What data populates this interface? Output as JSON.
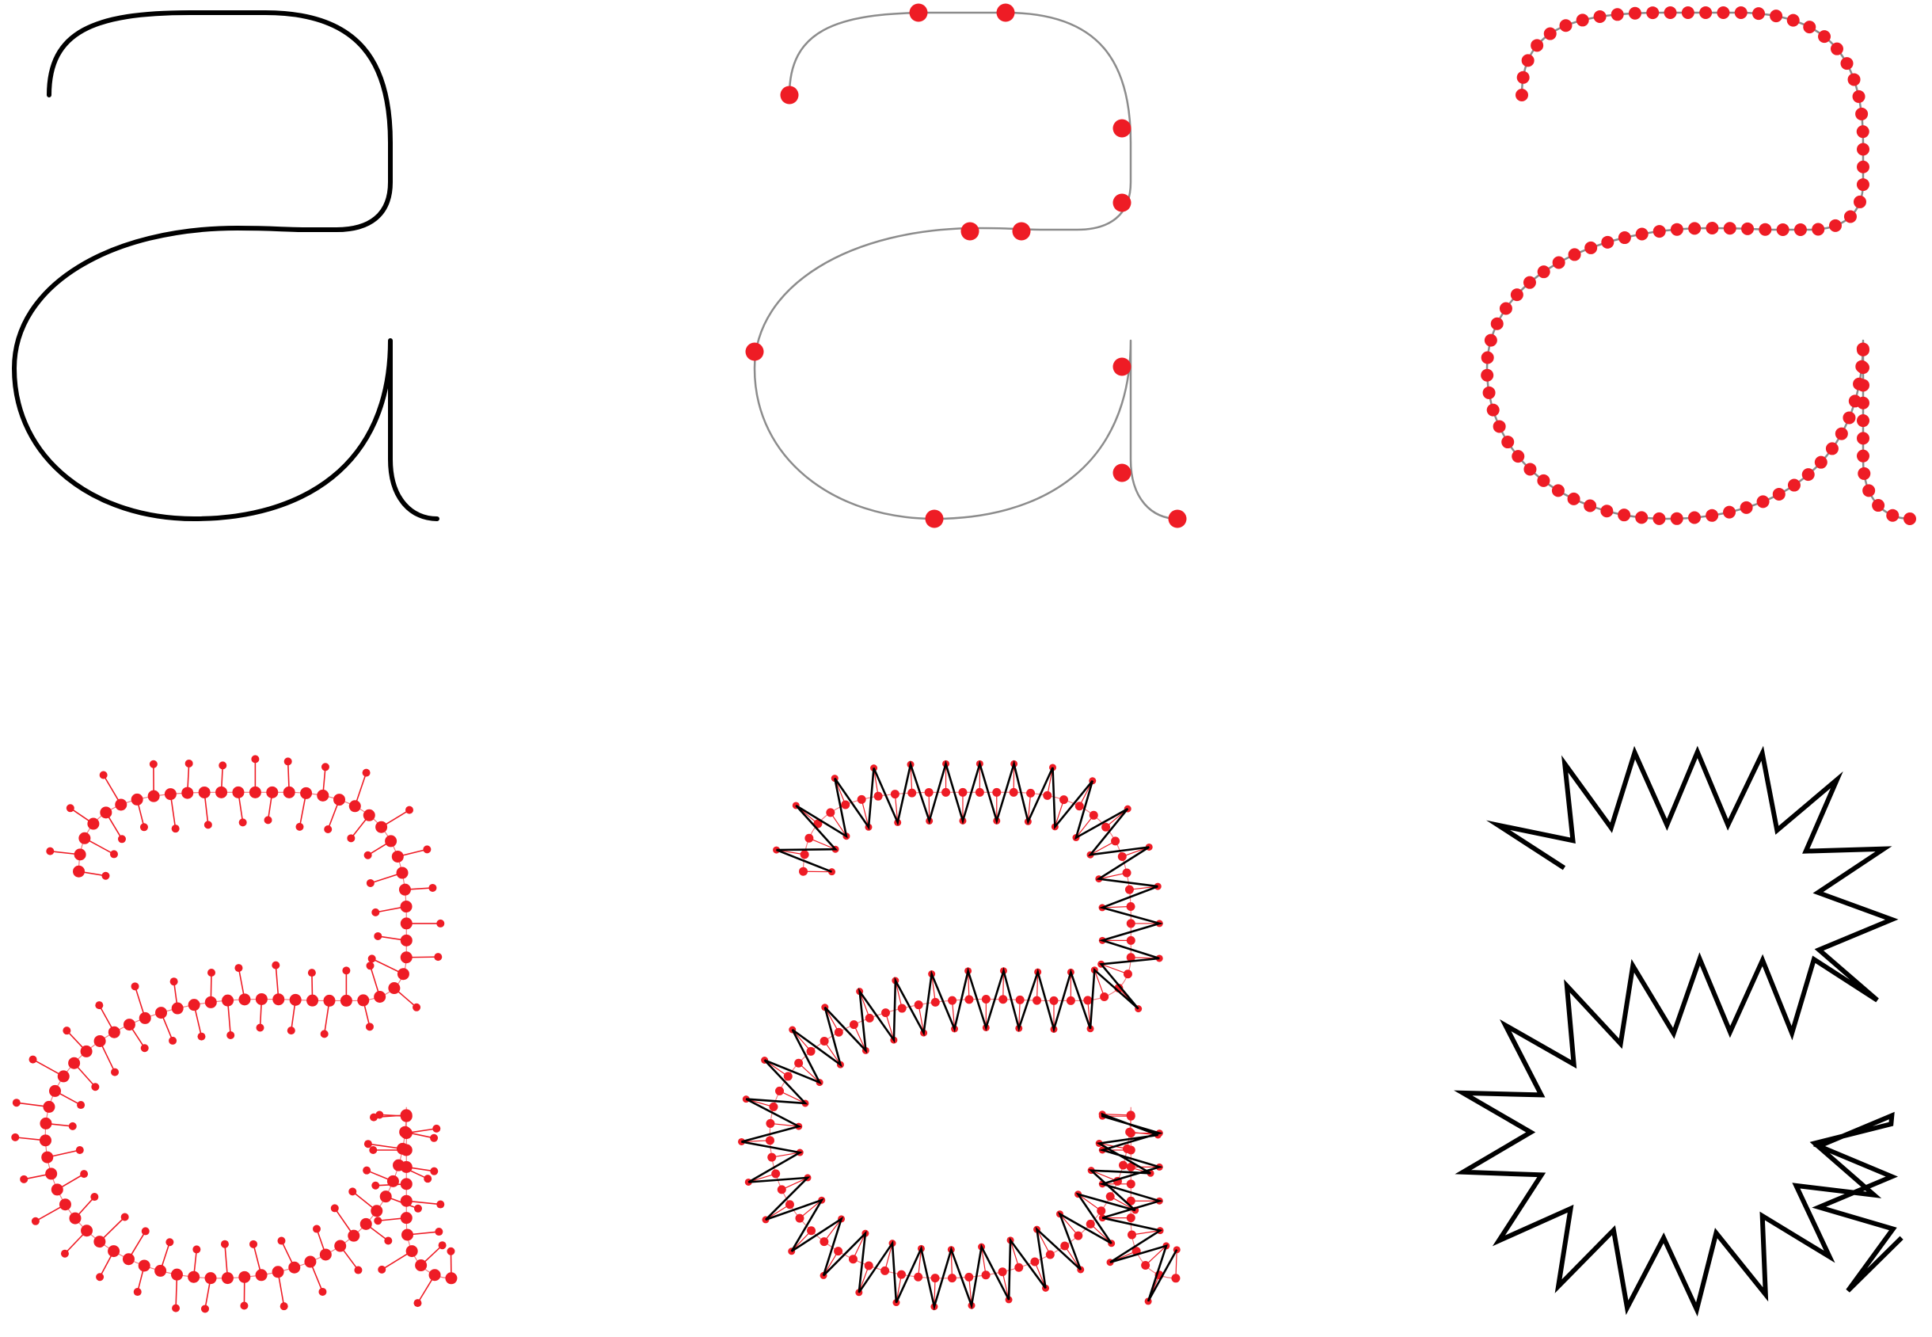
{
  "colors": {
    "background": "#ffffff",
    "outline": "#000000",
    "guide": "#8c8c8c",
    "point": "#ee1c25",
    "spoke": "#ee1c25"
  },
  "panels": [
    {
      "id": "outline",
      "stage": "original-glyph-outline"
    },
    {
      "id": "anchors",
      "stage": "bezier-anchor-points",
      "point_count": 13
    },
    {
      "id": "resampled",
      "stage": "evenly-resampled-points",
      "point_count": 100
    },
    {
      "id": "normals",
      "stage": "points-with-normal-offsets"
    },
    {
      "id": "zigzag-overlay",
      "stage": "zigzag-through-offset-points"
    },
    {
      "id": "zigzag",
      "stage": "final-zigzag-stroke"
    }
  ],
  "icons": {
    "glyph": "letter-a-glyph",
    "point": "red-dot-icon"
  }
}
